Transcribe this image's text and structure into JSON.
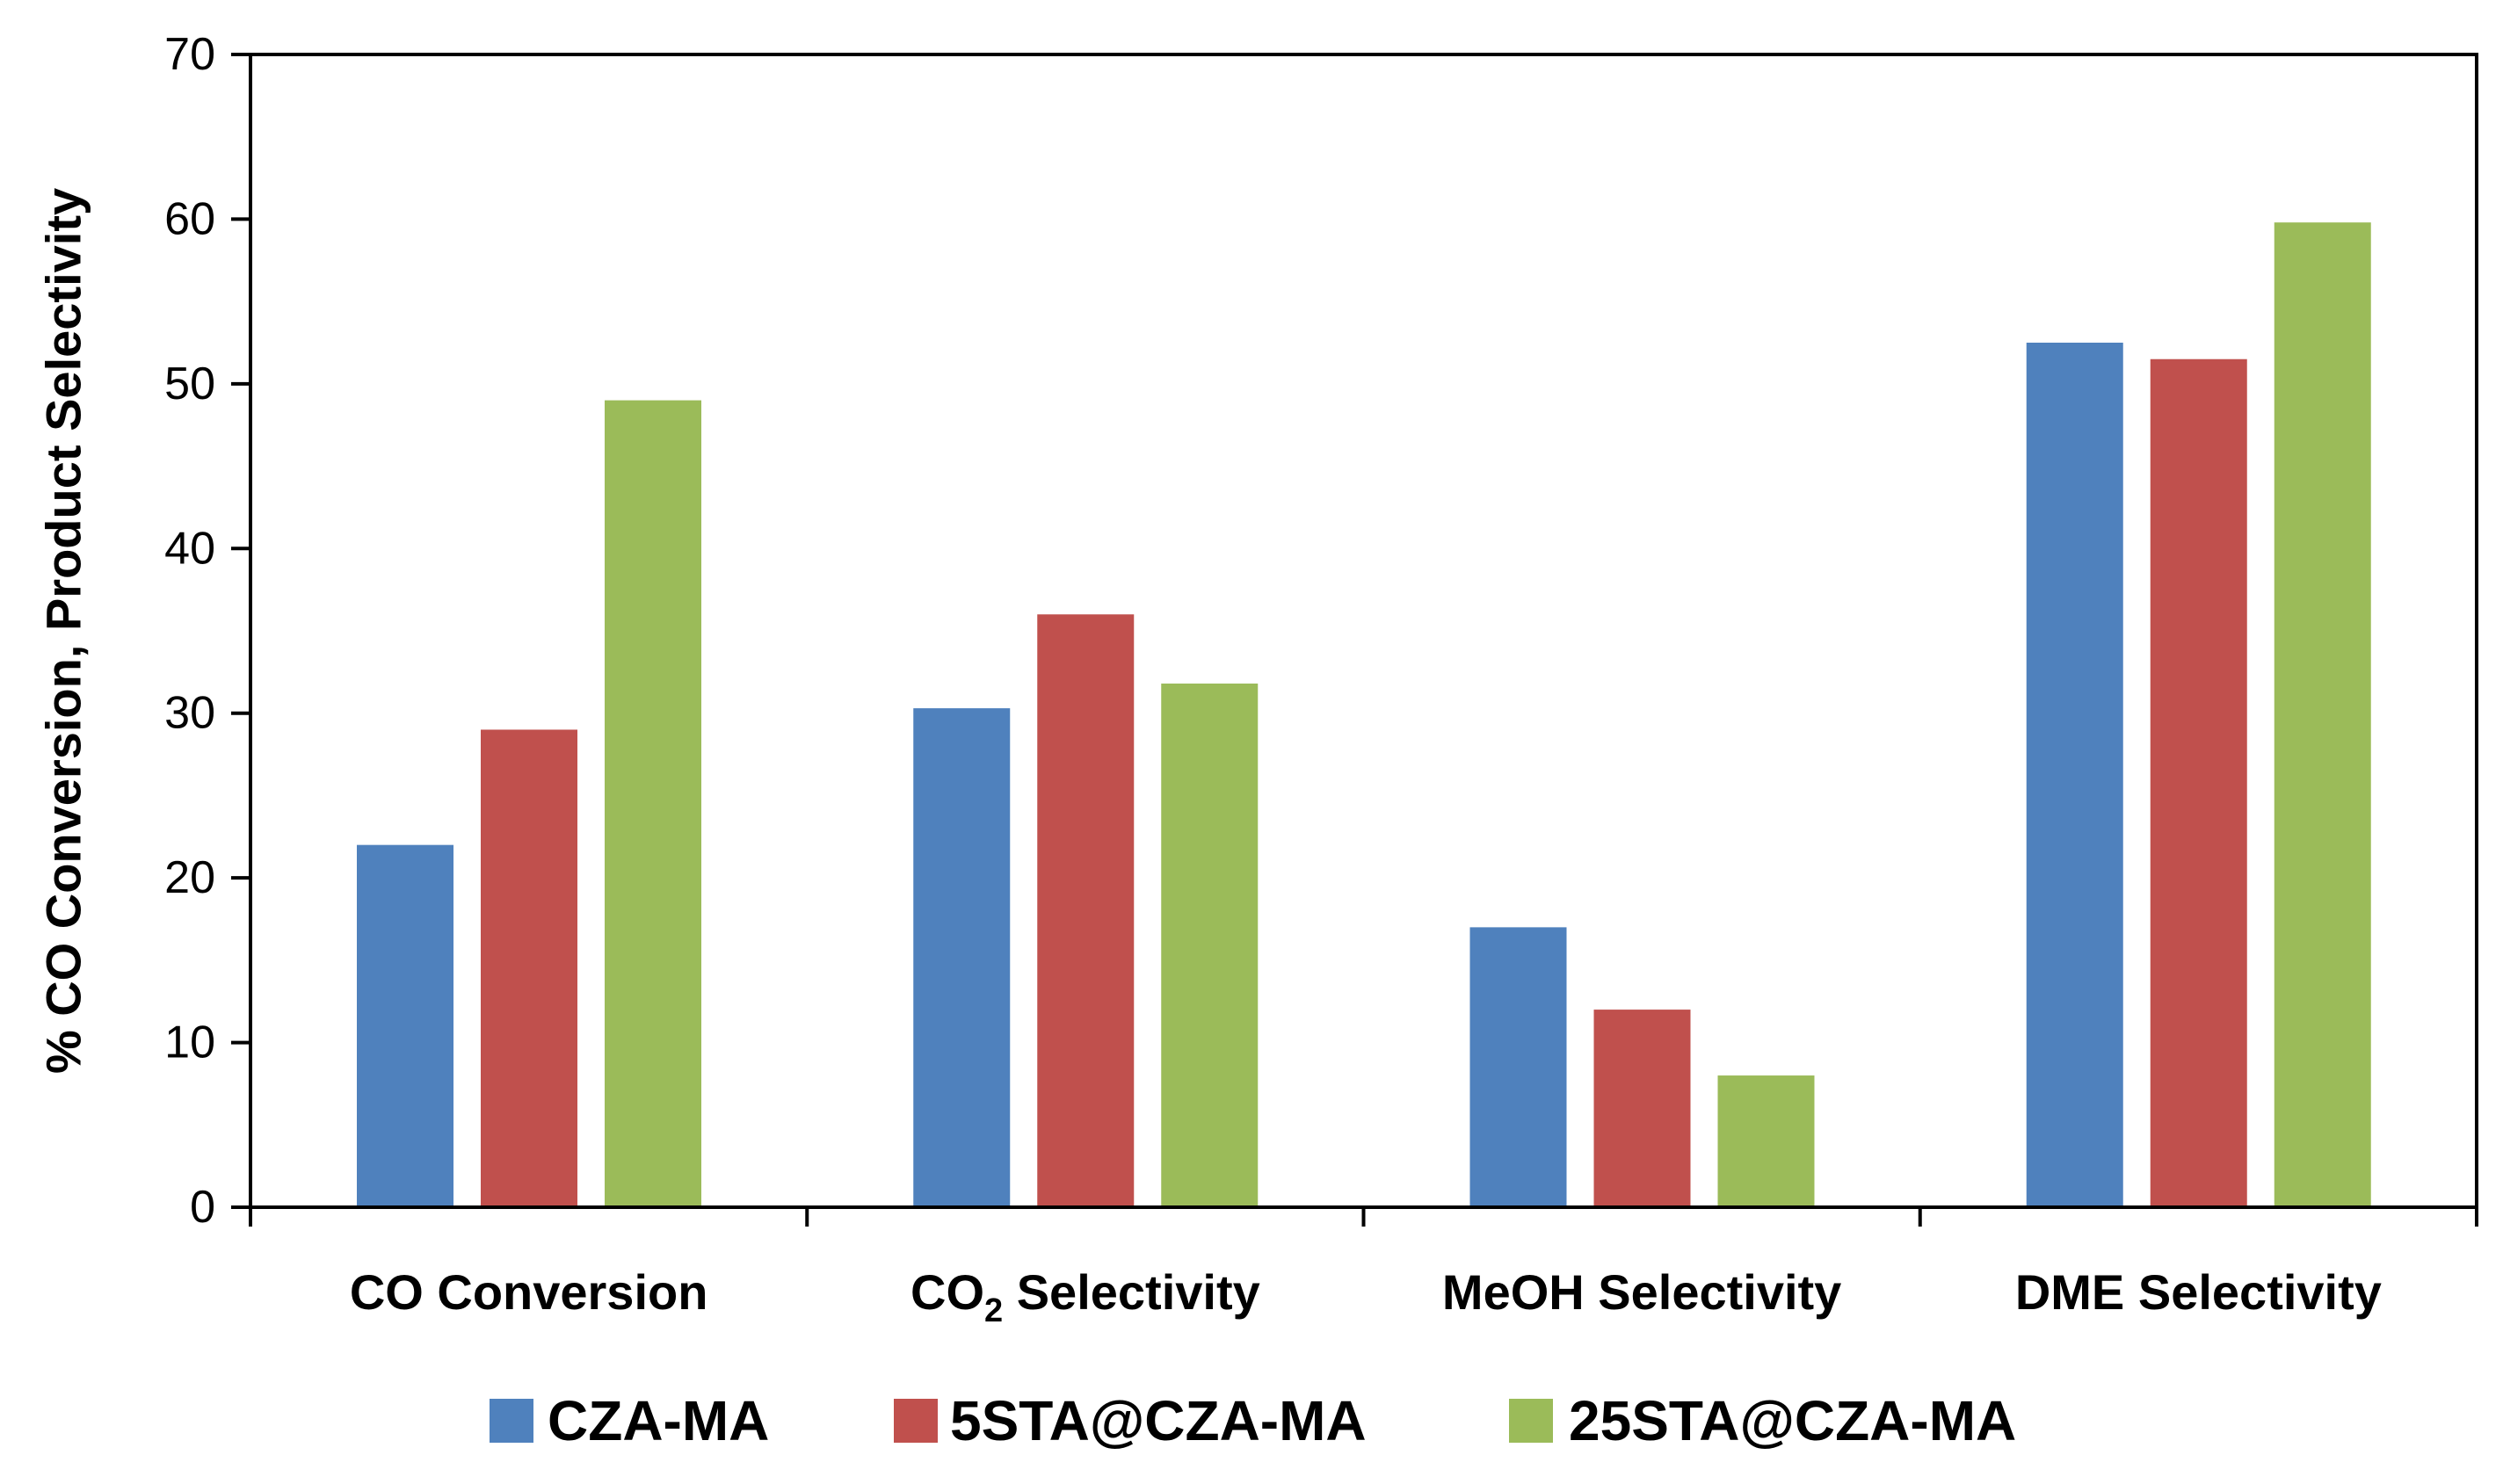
{
  "chart_data": {
    "type": "bar",
    "title": "",
    "xlabel": "",
    "ylabel": "% CO Conversion, Product Selectivity",
    "ylim": [
      0,
      70
    ],
    "yticks": [
      0,
      10,
      20,
      30,
      40,
      50,
      60,
      70
    ],
    "grid": false,
    "legend_position": "bottom",
    "categories": [
      {
        "main": "CO Conversion",
        "sub": "",
        "rest": ""
      },
      {
        "main": "CO",
        "sub": "2",
        "rest": " Selectivity"
      },
      {
        "main": "MeOH Selectivity",
        "sub": "",
        "rest": ""
      },
      {
        "main": "DME Selectivity",
        "sub": "",
        "rest": ""
      }
    ],
    "series": [
      {
        "name": "CZA-MA",
        "color": "#4F81BD",
        "values": [
          22,
          30.3,
          17,
          52.5
        ]
      },
      {
        "name": "5STA@CZA-MA",
        "color": "#C0504D",
        "values": [
          29,
          36,
          12,
          51.5
        ]
      },
      {
        "name": "25STA@CZA-MA",
        "color": "#9BBB59",
        "values": [
          49,
          31.8,
          8,
          59.8
        ]
      }
    ]
  }
}
